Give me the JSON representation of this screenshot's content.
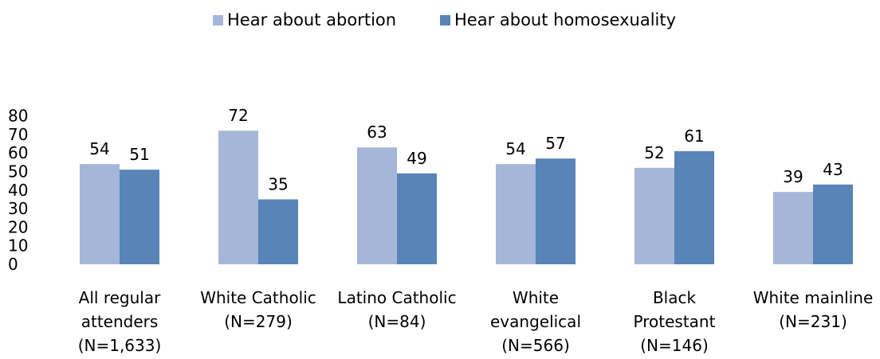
{
  "chart_data": {
    "type": "bar",
    "title": "",
    "xlabel": "",
    "ylabel": "",
    "ylim": [
      0,
      80
    ],
    "yticks": [
      "0",
      "10",
      "20",
      "30",
      "40",
      "50",
      "60",
      "70",
      "80"
    ],
    "legend_position": "top",
    "grid": false,
    "categories": [
      [
        "All regular",
        "attenders",
        "(N=1,633)"
      ],
      [
        "White Catholic",
        "(N=279)"
      ],
      [
        "Latino Catholic",
        "(N=84)"
      ],
      [
        "White",
        "evangelical",
        "(N=566)"
      ],
      [
        "Black",
        "Protestant",
        "(N=146)"
      ],
      [
        "White mainline",
        "(N=231)"
      ]
    ],
    "series": [
      {
        "name": "Hear about abortion",
        "color": "#a5b6d9",
        "values": [
          54,
          72,
          63,
          54,
          52,
          39
        ]
      },
      {
        "name": "Hear about homosexuality",
        "color": "#5884b8",
        "values": [
          51,
          35,
          49,
          57,
          61,
          43
        ]
      }
    ]
  }
}
